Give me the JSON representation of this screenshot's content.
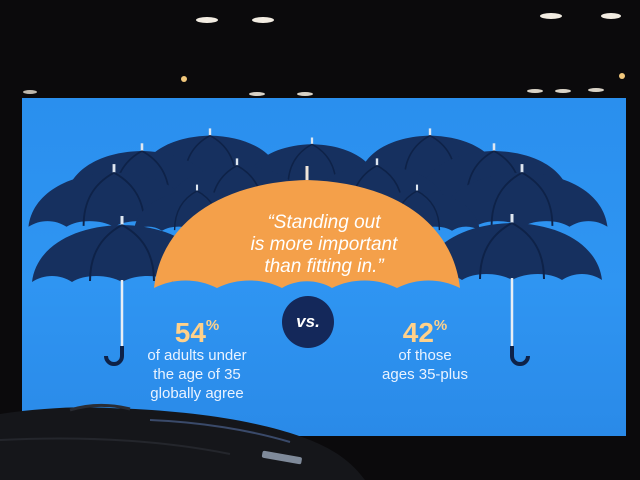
{
  "slide": {
    "quote": {
      "line1": "“Standing out",
      "line2": "is more important",
      "line3": "than fitting in.”"
    },
    "vs_label": "vs.",
    "left_stat": {
      "number": "54",
      "unit": "%",
      "line1": "of adults under",
      "line2": "the age of 35",
      "line3": "globally agree"
    },
    "right_stat": {
      "number": "42",
      "unit": "%",
      "line1": "of those",
      "line2": "ages 35-plus"
    }
  },
  "colors": {
    "screen_blue": "#2f95f2",
    "umbrella_navy": "#16305f",
    "umbrella_orange": "#f4a04a",
    "stat_yellow": "#ffd18a",
    "badge_navy": "#14285a"
  }
}
